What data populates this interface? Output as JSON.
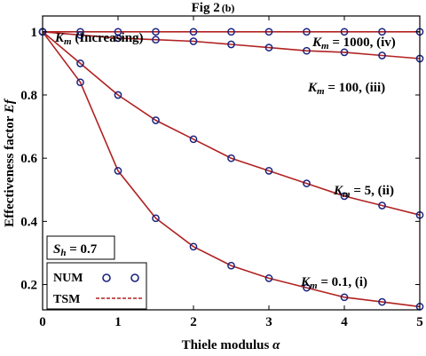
{
  "chart_data": {
    "type": "line",
    "title_main": "Fig 2",
    "title_sub": "(b)",
    "xlabel_text": "Thiele modulus ",
    "xlabel_symbol": "α",
    "ylabel_text": "Effectiveness factor ",
    "ylabel_symbol": "Ef",
    "xlim": [
      0,
      5
    ],
    "ylim": [
      0.12,
      1.05
    ],
    "xticks": [
      0,
      1,
      2,
      3,
      4,
      5
    ],
    "yticks": [
      0.2,
      0.4,
      0.6,
      0.8,
      1
    ],
    "grid": false,
    "increasing_note": {
      "var": "K",
      "sub": "m",
      "text": " (Increasing)"
    },
    "sh_box": {
      "var": "S",
      "sub": "h",
      "text": " = 0.7"
    },
    "legend": {
      "placement": "bottom-left",
      "entries": [
        {
          "name": "NUM",
          "marker": "circle"
        },
        {
          "name": "TSM",
          "marker": "dashed-line"
        }
      ]
    },
    "colors": {
      "line": "#b22222",
      "marker": "#1a237e",
      "axis": "#000000"
    },
    "x": [
      0,
      0.5,
      1,
      1.5,
      2,
      2.5,
      3,
      3.5,
      4,
      4.5,
      5
    ],
    "series": [
      {
        "var": "K",
        "sub": "m",
        "label": " = 1000, (iv)",
        "values": [
          1,
          1,
          1,
          1,
          1,
          1,
          1,
          1,
          1,
          1,
          1
        ]
      },
      {
        "var": "K",
        "sub": "m",
        "label": " = 100, (iii)",
        "values": [
          1,
          0.99,
          0.98,
          0.975,
          0.97,
          0.96,
          0.95,
          0.94,
          0.935,
          0.925,
          0.915
        ]
      },
      {
        "var": "K",
        "sub": "m",
        "label": " = 5, (ii)",
        "values": [
          1,
          0.9,
          0.8,
          0.72,
          0.66,
          0.6,
          0.56,
          0.52,
          0.48,
          0.45,
          0.42
        ]
      },
      {
        "var": "K",
        "sub": "m",
        "label": " = 0.1, (i)",
        "values": [
          1,
          0.84,
          0.56,
          0.41,
          0.32,
          0.26,
          0.22,
          0.19,
          0.16,
          0.145,
          0.13
        ]
      }
    ]
  }
}
